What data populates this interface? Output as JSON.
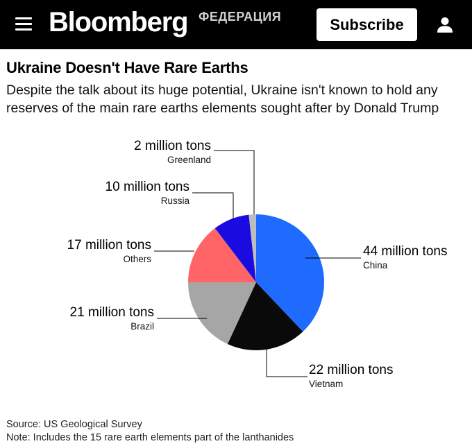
{
  "header": {
    "brand": "Bloomberg",
    "brand_sub": "ФЕДЕРАЦИЯ",
    "subscribe_label": "Subscribe",
    "menu_icon": "hamburger-menu-icon",
    "user_icon": "user-icon",
    "bg_color": "#000000"
  },
  "title": "Ukraine Doesn't Have Rare Earths",
  "subtitle": "Despite the talk about its huge potential, Ukraine isn't known to hold any reserves of the main rare earths elements sought after by Donald Trump",
  "chart_data": {
    "type": "pie",
    "unit": "million tons",
    "slices": [
      {
        "label": "China",
        "value": 44,
        "value_label": "44 million tons",
        "color": "#1F6BFF"
      },
      {
        "label": "Vietnam",
        "value": 22,
        "value_label": "22 million tons",
        "color": "#0A0A0A"
      },
      {
        "label": "Brazil",
        "value": 21,
        "value_label": "21 million tons",
        "color": "#A6A6A6"
      },
      {
        "label": "Others",
        "value": 17,
        "value_label": "17 million tons",
        "color": "#FF6466"
      },
      {
        "label": "Russia",
        "value": 10,
        "value_label": "10 million tons",
        "color": "#1A0BE0"
      },
      {
        "label": "Greenland",
        "value": 2,
        "value_label": "2 million tons",
        "color": "#BDBDBD"
      }
    ]
  },
  "footer": {
    "source": "Source: US Geological Survey",
    "note": "Note: Includes the 15 rare earth elements part of the lanthanides"
  }
}
